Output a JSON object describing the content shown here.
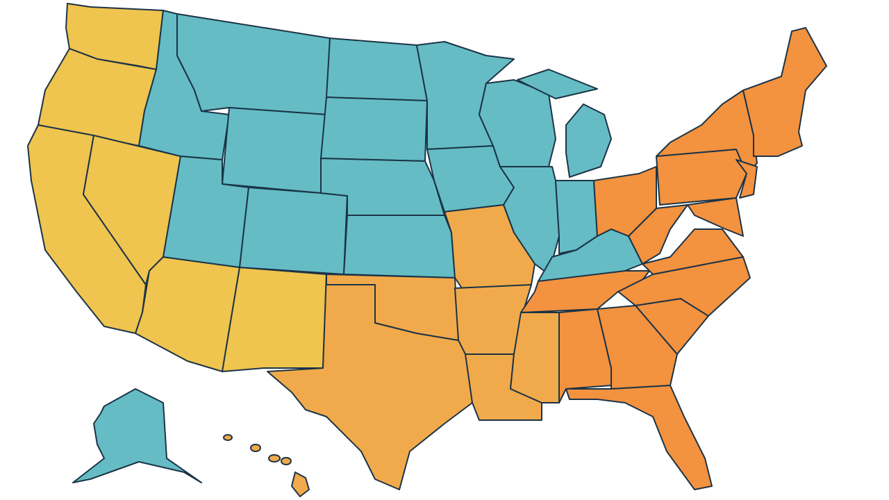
{
  "map": {
    "regions": [
      {
        "color": "#efc44f"
      },
      {
        "color": "#65bcc4"
      },
      {
        "color": "#f1aa4b"
      },
      {
        "color": "#f3923f"
      }
    ]
  }
}
